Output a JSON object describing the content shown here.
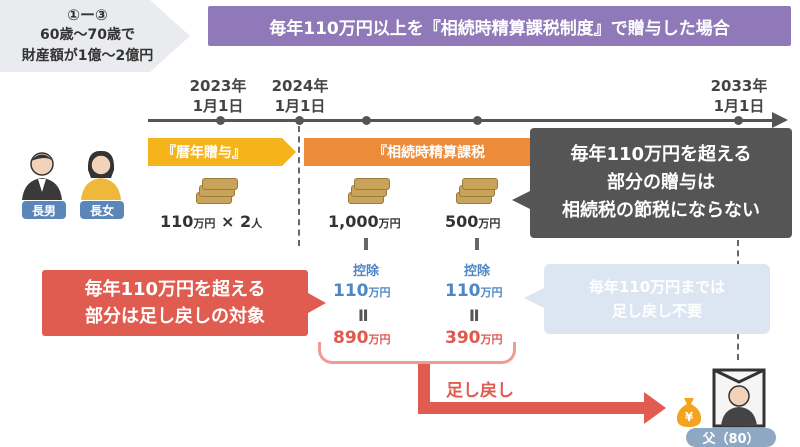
{
  "scenario": {
    "line1": "①ー③",
    "line2": "60歳〜70歳で",
    "line3": "財産額が1億〜2億円"
  },
  "banner": "毎年110万円以上を『相続時精算課税制度』で贈与した場合",
  "timeline": {
    "dates": [
      {
        "year": "2023年",
        "day": "1月1日"
      },
      {
        "year": "2024年",
        "day": "1月1日"
      },
      {
        "year": "2033年",
        "day": "1月1日"
      }
    ]
  },
  "gift_types": {
    "yearly": "『暦年贈与』",
    "settlement": "『相続時精算課税"
  },
  "yearly_gift": {
    "amount": "110",
    "unit": "万円",
    "times": "× 2",
    "person_unit": "人"
  },
  "settlement_gifts": [
    {
      "amount": "1,000",
      "unit": "万円",
      "deduct_label": "控除",
      "deduct_amount": "110",
      "deduct_unit": "万円",
      "eq": "Ⅱ",
      "result": "890",
      "result_unit": "万円"
    },
    {
      "amount": "500",
      "unit": "万円",
      "deduct_label": "控除",
      "deduct_amount": "110",
      "deduct_unit": "万円",
      "eq": "Ⅱ",
      "result": "390",
      "result_unit": "万円"
    }
  ],
  "notes": {
    "dark": [
      "毎年110万円を超える",
      "部分の贈与は",
      "相続税の節税にならない"
    ],
    "red": [
      "毎年110万円を超える",
      "部分は足し戻しの対象"
    ],
    "blue": [
      "毎年110万円までは",
      "足し戻し不要"
    ]
  },
  "return_label": "足し戻し",
  "people": {
    "son": "長男",
    "daughter": "長女",
    "father": "父（80）"
  },
  "colors": {
    "banner": "#8f79b8",
    "yearly": "#f5b41c",
    "settlement": "#ed8b3a",
    "red": "#e05b50",
    "blue_text": "#4f86c6",
    "dark_note": "#555555",
    "light_note": "#dce6f3"
  }
}
